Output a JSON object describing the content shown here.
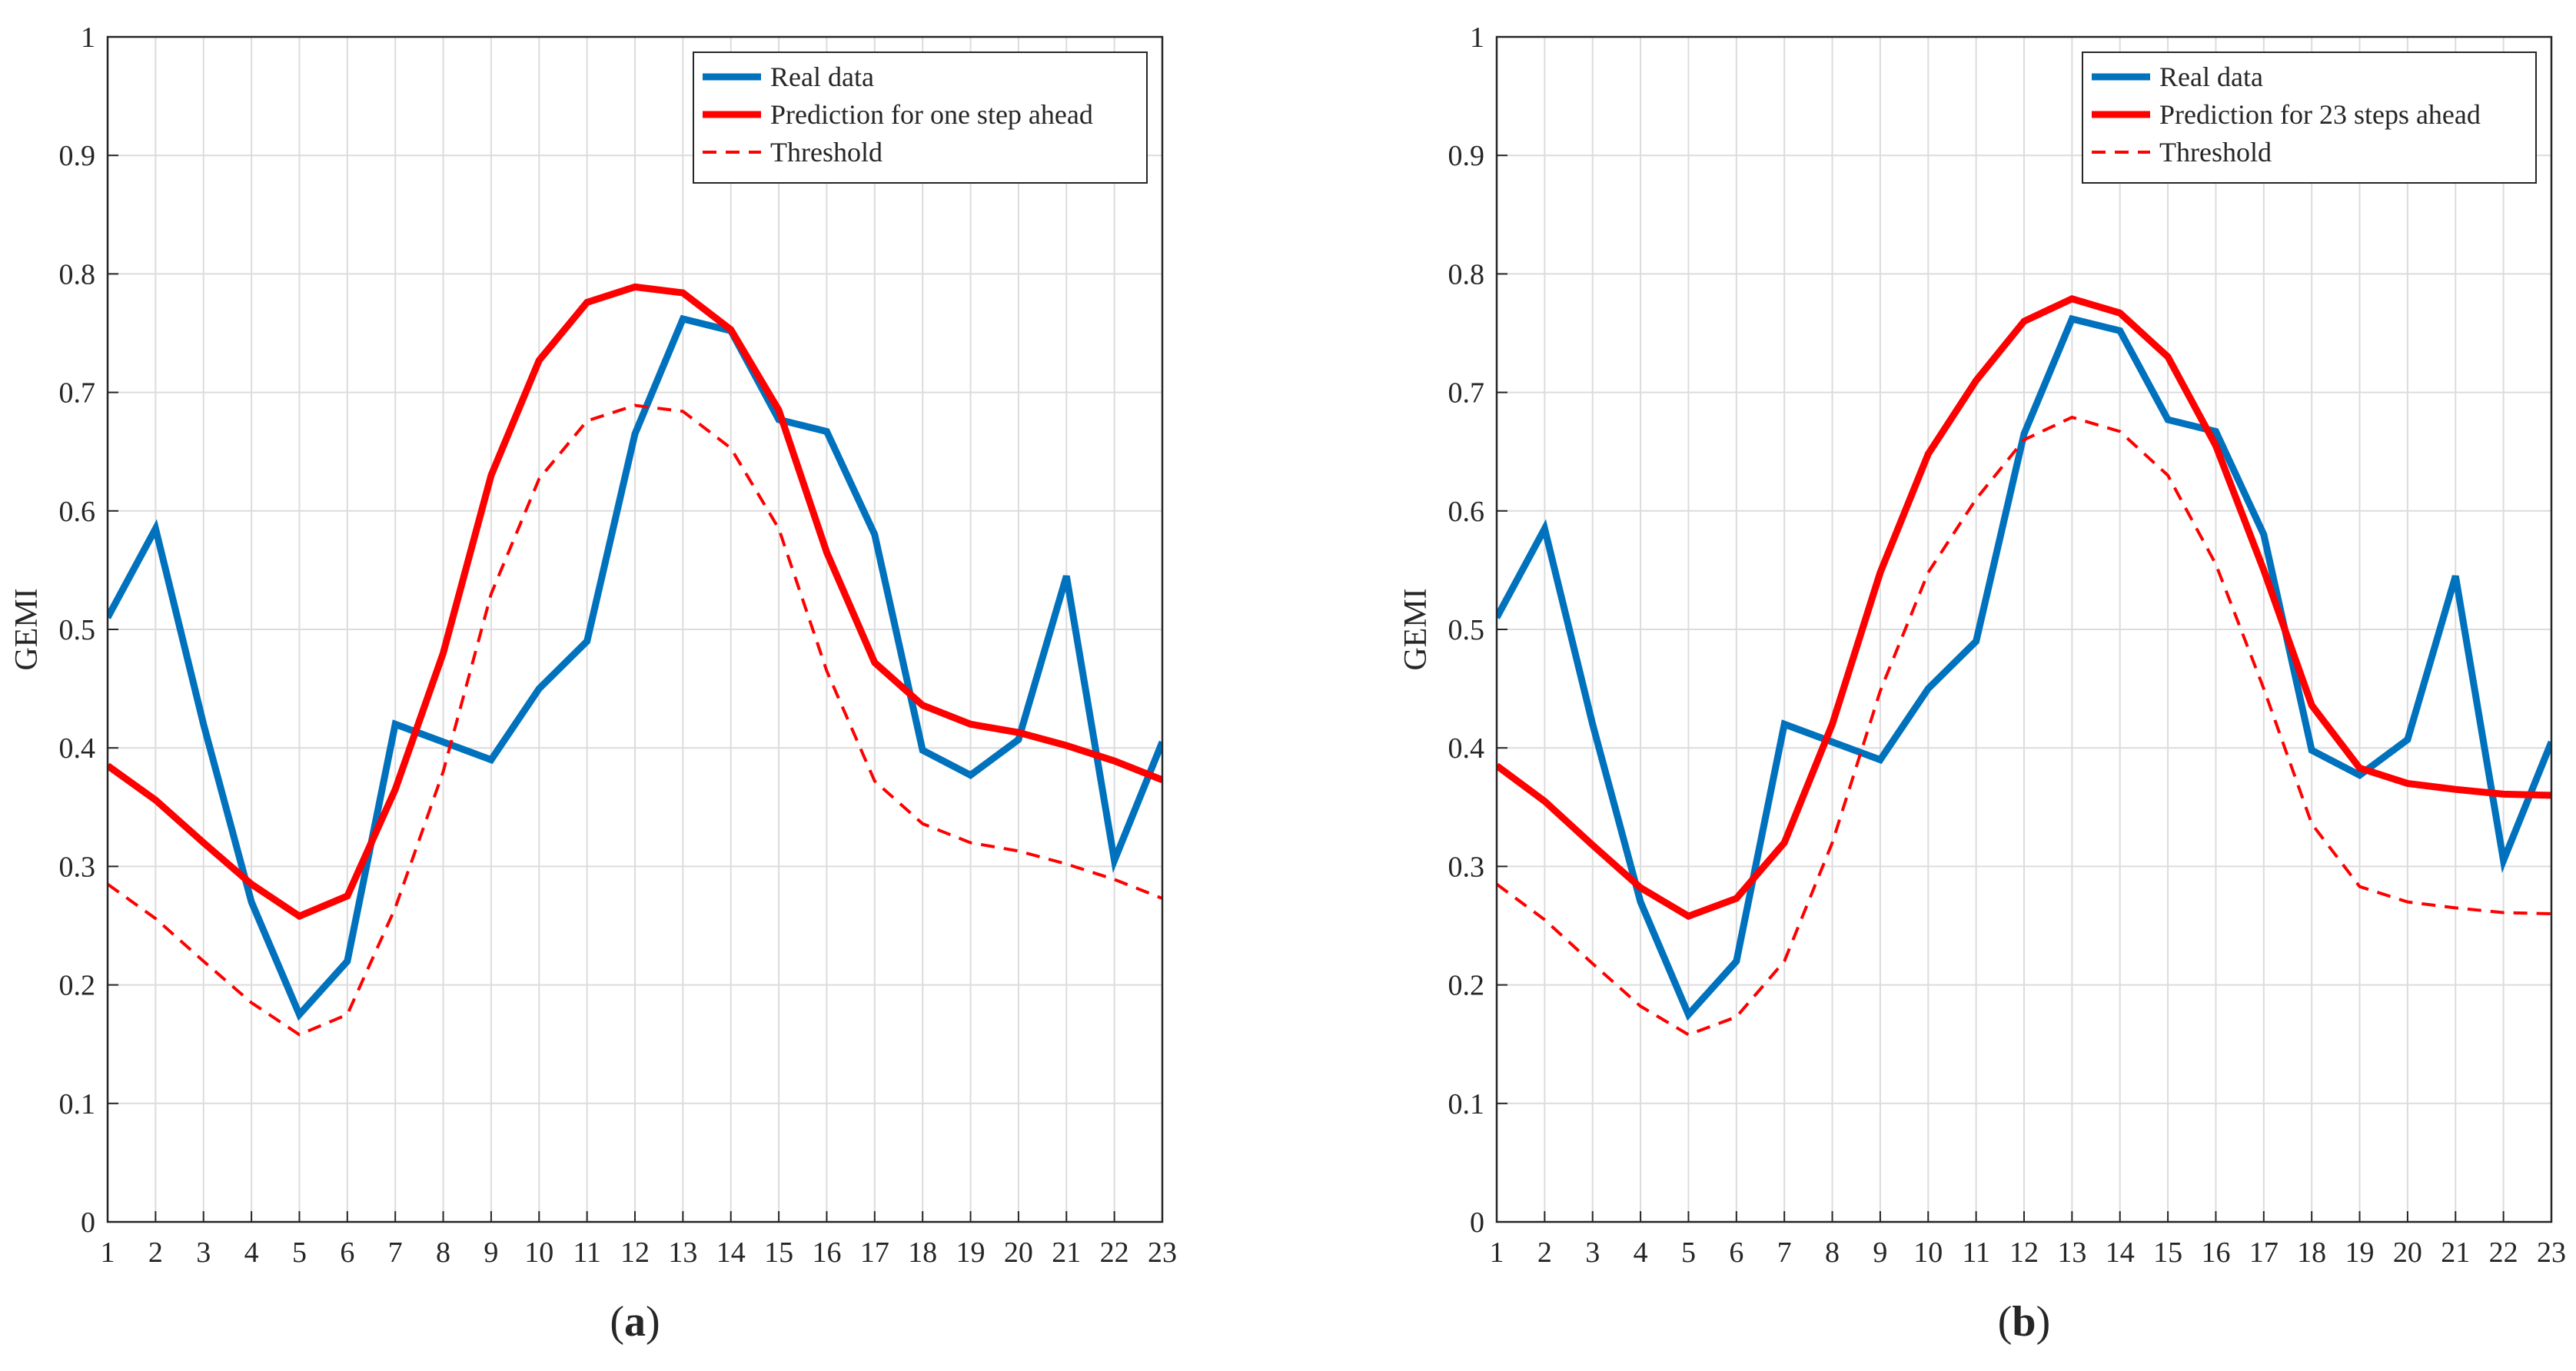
{
  "chart_data": [
    {
      "type": "line",
      "panel_label": "a",
      "ylabel": "GEMI",
      "xlabel": "",
      "x": [
        1,
        2,
        3,
        4,
        5,
        6,
        7,
        8,
        9,
        10,
        11,
        12,
        13,
        14,
        15,
        16,
        17,
        18,
        19,
        20,
        21,
        22,
        23
      ],
      "xlim": [
        1,
        23
      ],
      "ylim": [
        0,
        1
      ],
      "yticks": [
        0,
        0.1,
        0.2,
        0.3,
        0.4,
        0.5,
        0.6,
        0.7,
        0.8,
        0.9,
        1
      ],
      "grid": true,
      "legend_position": "top-right",
      "series": [
        {
          "name": "Real data",
          "color": "#0072BD",
          "style": "solid",
          "values": [
            0.51,
            0.585,
            0.42,
            0.27,
            0.175,
            0.22,
            0.42,
            0.405,
            0.39,
            0.45,
            0.49,
            0.665,
            0.762,
            0.752,
            0.677,
            0.667,
            0.58,
            0.398,
            0.377,
            0.407,
            0.545,
            0.305,
            0.405
          ]
        },
        {
          "name": "Prediction for one step ahead",
          "color": "#FF0000",
          "style": "solid",
          "values": [
            0.385,
            0.356,
            0.32,
            0.285,
            0.258,
            0.275,
            0.365,
            0.48,
            0.63,
            0.727,
            0.776,
            0.789,
            0.784,
            0.753,
            0.685,
            0.565,
            0.472,
            0.436,
            0.42,
            0.413,
            0.402,
            0.389,
            0.373
          ]
        },
        {
          "name": "Threshold",
          "color": "#FF0000",
          "style": "dashed",
          "values": [
            0.285,
            0.256,
            0.22,
            0.185,
            0.158,
            0.175,
            0.265,
            0.38,
            0.53,
            0.627,
            0.676,
            0.689,
            0.684,
            0.653,
            0.585,
            0.465,
            0.372,
            0.336,
            0.32,
            0.313,
            0.302,
            0.289,
            0.273
          ]
        }
      ]
    },
    {
      "type": "line",
      "panel_label": "b",
      "ylabel": "GEMI",
      "xlabel": "",
      "x": [
        1,
        2,
        3,
        4,
        5,
        6,
        7,
        8,
        9,
        10,
        11,
        12,
        13,
        14,
        15,
        16,
        17,
        18,
        19,
        20,
        21,
        22,
        23
      ],
      "xlim": [
        1,
        23
      ],
      "ylim": [
        0,
        1
      ],
      "yticks": [
        0,
        0.1,
        0.2,
        0.3,
        0.4,
        0.5,
        0.6,
        0.7,
        0.8,
        0.9,
        1
      ],
      "grid": true,
      "legend_position": "top-right",
      "series": [
        {
          "name": "Real data",
          "color": "#0072BD",
          "style": "solid",
          "values": [
            0.51,
            0.585,
            0.42,
            0.27,
            0.175,
            0.22,
            0.42,
            0.405,
            0.39,
            0.45,
            0.49,
            0.665,
            0.762,
            0.752,
            0.677,
            0.667,
            0.58,
            0.398,
            0.377,
            0.407,
            0.545,
            0.305,
            0.405
          ]
        },
        {
          "name": "Prediction for 23 steps ahead",
          "color": "#FF0000",
          "style": "solid",
          "values": [
            0.385,
            0.355,
            0.318,
            0.282,
            0.258,
            0.273,
            0.32,
            0.42,
            0.548,
            0.648,
            0.71,
            0.76,
            0.779,
            0.767,
            0.73,
            0.655,
            0.55,
            0.436,
            0.383,
            0.37,
            0.365,
            0.361,
            0.36
          ]
        },
        {
          "name": "Threshold",
          "color": "#FF0000",
          "style": "dashed",
          "values": [
            0.285,
            0.255,
            0.218,
            0.182,
            0.158,
            0.173,
            0.22,
            0.32,
            0.448,
            0.548,
            0.61,
            0.66,
            0.679,
            0.667,
            0.63,
            0.555,
            0.45,
            0.336,
            0.283,
            0.27,
            0.265,
            0.261,
            0.26
          ]
        }
      ]
    }
  ]
}
